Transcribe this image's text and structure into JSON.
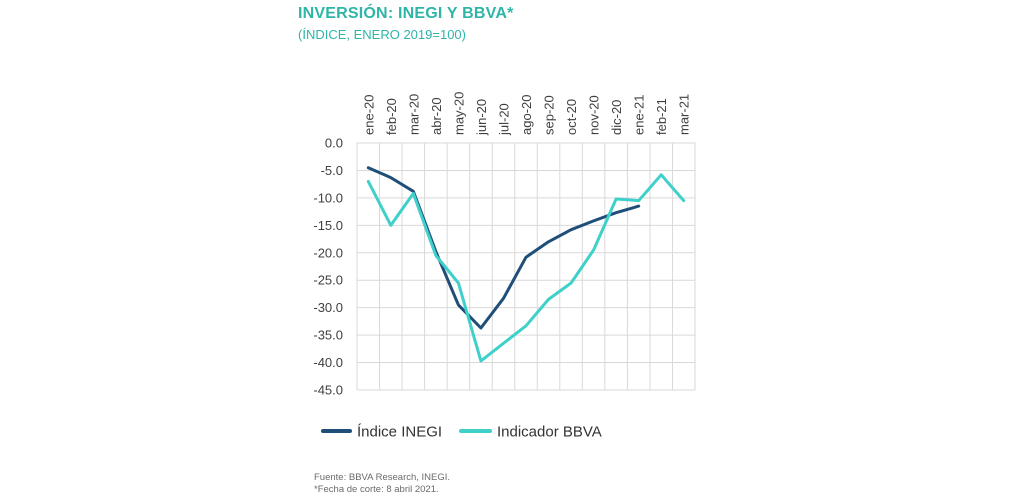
{
  "header": {
    "title": "INVERSIÓN: INEGI Y BBVA*",
    "subtitle": "(ÍNDICE, ENERO 2019=100)"
  },
  "footer": {
    "source": "Fuente: BBVA Research, INEGI.",
    "note": "*Fecha de corte: 8 abril 2021."
  },
  "colors": {
    "inegi": "#1f4e79",
    "bbva": "#3fd0c9",
    "grid": "#d9d9d9",
    "title": "#2fb5a8"
  },
  "chart_data": {
    "type": "line",
    "categories": [
      "ene-20",
      "feb-20",
      "mar-20",
      "abr-20",
      "may-20",
      "jun-20",
      "jul-20",
      "ago-20",
      "sep-20",
      "oct-20",
      "nov-20",
      "dic-20",
      "ene-21",
      "feb-21",
      "mar-21"
    ],
    "ylim": [
      -45,
      0
    ],
    "yticks": [
      0,
      -5,
      -10,
      -15,
      -20,
      -25,
      -30,
      -35,
      -40,
      -45
    ],
    "ytick_labels": [
      "0.0",
      "-5.0",
      "-10.0",
      "-15.0",
      "-20.0",
      "-25.0",
      "-30.0",
      "-35.0",
      "-40.0",
      "-45.0"
    ],
    "grid": true,
    "legend_position": "bottom",
    "xaxis_position": "top",
    "series": [
      {
        "name": "Índice INEGI",
        "values": [
          -4.5,
          -6.3,
          -8.8,
          -19.8,
          -29.5,
          -33.7,
          -28.3,
          -20.8,
          -18.0,
          -15.8,
          -14.2,
          -12.7,
          -11.5,
          null,
          null
        ]
      },
      {
        "name": "Indicador BBVA",
        "values": [
          -7.0,
          -15.0,
          -9.2,
          -20.5,
          -25.5,
          -39.7,
          -36.5,
          -33.3,
          -28.5,
          -25.5,
          -19.5,
          -10.2,
          -10.5,
          -5.8,
          -10.5
        ]
      }
    ]
  }
}
